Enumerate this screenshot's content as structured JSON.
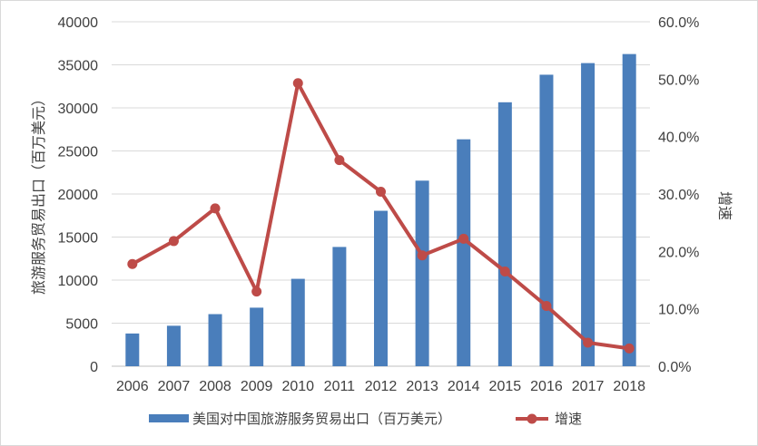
{
  "chart_data": {
    "type": "bar+line",
    "categories": [
      "2006",
      "2007",
      "2008",
      "2009",
      "2010",
      "2011",
      "2012",
      "2013",
      "2014",
      "2015",
      "2016",
      "2017",
      "2018"
    ],
    "series": [
      {
        "name": "美国对中国旅游服务贸易出口（百万美元）",
        "type": "bar",
        "axis": "left",
        "color": "#4a7ebb",
        "values": [
          3800,
          4700,
          6050,
          6800,
          10150,
          13850,
          18050,
          21550,
          26350,
          30650,
          33850,
          35200,
          36250
        ]
      },
      {
        "name": "增速",
        "type": "line",
        "axis": "right",
        "color": "#be4b48",
        "values": [
          17.8,
          21.8,
          27.5,
          13.0,
          49.3,
          35.9,
          30.4,
          19.3,
          22.2,
          16.5,
          10.5,
          4.1,
          3.1
        ]
      }
    ],
    "y_left": {
      "label": "旅游服务贸易出口（百万美元）",
      "ylim": [
        0,
        40000
      ],
      "ticks": [
        "0",
        "5000",
        "10000",
        "15000",
        "20000",
        "25000",
        "30000",
        "35000",
        "40000"
      ]
    },
    "y_right": {
      "label": "增速",
      "ylim": [
        0,
        60
      ],
      "ticks": [
        "0.0%",
        "10.0%",
        "20.0%",
        "30.0%",
        "40.0%",
        "50.0%",
        "60.0%"
      ]
    },
    "grid": true,
    "legend": "bottom"
  }
}
